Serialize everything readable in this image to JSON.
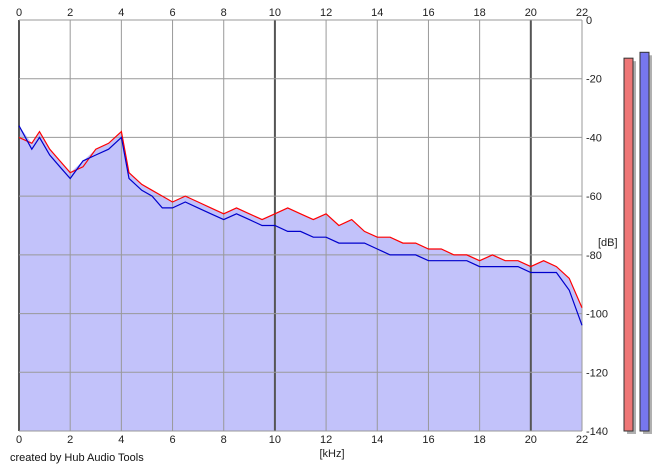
{
  "credit": "created by Hub Audio Tools",
  "chart_data": {
    "type": "area",
    "xlabel": "[kHz]",
    "ylabel": "[dB]",
    "xlim": [
      0,
      22
    ],
    "ylim": [
      -140,
      0
    ],
    "x_ticks": [
      0,
      2,
      4,
      6,
      8,
      10,
      12,
      14,
      16,
      18,
      20,
      22
    ],
    "y_ticks": [
      0,
      -20,
      -40,
      -60,
      -80,
      -100,
      -120,
      -140
    ],
    "grid": true,
    "series": [
      {
        "color": "#ff0000",
        "x": [
          0.0,
          0.5,
          0.8,
          1.2,
          1.6,
          2.0,
          2.5,
          3.0,
          3.5,
          4.0,
          4.3,
          4.8,
          5.2,
          5.6,
          6.0,
          6.5,
          7.0,
          7.5,
          8.0,
          8.5,
          9.0,
          9.5,
          10.0,
          10.5,
          11.0,
          11.5,
          12.0,
          12.5,
          13.0,
          13.5,
          14.0,
          14.5,
          15.0,
          15.5,
          16.0,
          16.5,
          17.0,
          17.5,
          18.0,
          18.5,
          19.0,
          19.5,
          20.0,
          20.5,
          21.0,
          21.5,
          22.0
        ],
        "values": [
          -40,
          -42,
          -38,
          -44,
          -48,
          -52,
          -50,
          -44,
          -42,
          -38,
          -52,
          -56,
          -58,
          -60,
          -62,
          -60,
          -62,
          -64,
          -66,
          -64,
          -66,
          -68,
          -66,
          -64,
          -66,
          -68,
          -66,
          -70,
          -68,
          -72,
          -74,
          -74,
          -76,
          -76,
          -78,
          -78,
          -80,
          -80,
          -82,
          -80,
          -82,
          -82,
          -84,
          -82,
          -84,
          -88,
          -98
        ]
      },
      {
        "color": "#0000cc",
        "x": [
          0.0,
          0.5,
          0.8,
          1.2,
          1.6,
          2.0,
          2.5,
          3.0,
          3.5,
          4.0,
          4.3,
          4.8,
          5.2,
          5.6,
          6.0,
          6.5,
          7.0,
          7.5,
          8.0,
          8.5,
          9.0,
          9.5,
          10.0,
          10.5,
          11.0,
          11.5,
          12.0,
          12.5,
          13.0,
          13.5,
          14.0,
          14.5,
          15.0,
          15.5,
          16.0,
          16.5,
          17.0,
          17.5,
          18.0,
          18.5,
          19.0,
          19.5,
          20.0,
          20.5,
          21.0,
          21.5,
          22.0
        ],
        "values": [
          -36,
          -44,
          -40,
          -46,
          -50,
          -54,
          -48,
          -46,
          -44,
          -40,
          -54,
          -58,
          -60,
          -64,
          -64,
          -62,
          -64,
          -66,
          -68,
          -66,
          -68,
          -70,
          -70,
          -72,
          -72,
          -74,
          -74,
          -76,
          -76,
          -76,
          -78,
          -80,
          -80,
          -80,
          -82,
          -82,
          -82,
          -82,
          -84,
          -84,
          -84,
          -84,
          -86,
          -86,
          -86,
          -92,
          -104
        ]
      }
    ],
    "level_meters": [
      {
        "color": "#ee7777",
        "peak_db": -13
      },
      {
        "color": "#7777ee",
        "peak_db": -11
      }
    ]
  }
}
